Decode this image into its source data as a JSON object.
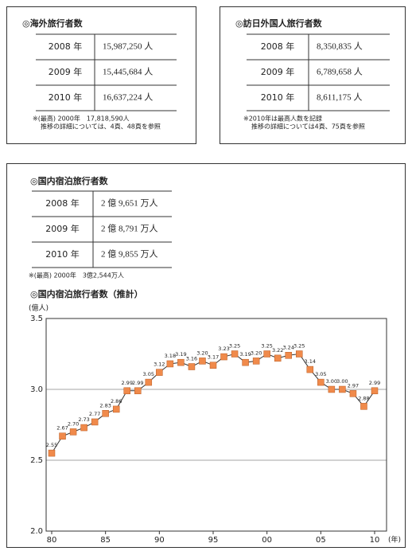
{
  "tables": [
    {
      "title": "◎海外旅行者数",
      "rows": [
        [
          "2008 年",
          "15,987,250 人"
        ],
        [
          "2009 年",
          "15,445,684 人"
        ],
        [
          "2010 年",
          "16,637,224 人"
        ]
      ],
      "notes": [
        "※(最高) 2000年　17,818,590人",
        "推移の詳細については、4頁、48頁を参照"
      ]
    },
    {
      "title": "◎訪日外国人旅行者数",
      "rows": [
        [
          "2008 年",
          "8,350,835 人"
        ],
        [
          "2009 年",
          "6,789,658 人"
        ],
        [
          "2010 年",
          "8,611,175 人"
        ]
      ],
      "notes": [
        "※2010年は最高人数を記録",
        "推移の詳細については4頁、75頁を参照"
      ]
    },
    {
      "title": "◎国内宿泊旅行者数",
      "rows": [
        [
          "2008 年",
          "2 億 9,651 万人"
        ],
        [
          "2009 年",
          "2 億 8,791 万人"
        ],
        [
          "2010 年",
          "2 億 9,855 万人"
        ]
      ],
      "notes": [
        "※(最高) 2000年　3億2,544万人"
      ]
    }
  ],
  "chart_data": {
    "type": "line",
    "title": "◎国内宿泊旅行者数（推計）",
    "y_label": "(億人)",
    "x_label": "(年)",
    "categories": [
      "80",
      null,
      null,
      null,
      null,
      "85",
      null,
      null,
      null,
      null,
      "90",
      null,
      null,
      null,
      null,
      "95",
      null,
      null,
      null,
      null,
      "00",
      null,
      null,
      null,
      null,
      "05",
      null,
      null,
      null,
      null,
      "10"
    ],
    "values": [
      2.55,
      2.67,
      2.7,
      2.73,
      2.77,
      2.83,
      2.86,
      2.99,
      2.99,
      3.05,
      3.12,
      3.18,
      3.19,
      3.16,
      3.2,
      3.17,
      3.23,
      3.25,
      3.19,
      3.2,
      3.25,
      3.22,
      3.24,
      3.25,
      3.14,
      3.05,
      3.0,
      3.0,
      2.97,
      2.88,
      2.99
    ],
    "value_labels": [
      "2.55",
      "2.67",
      "2.70",
      "2.73",
      "2.77",
      "2.83",
      "2.86",
      "2.99",
      "2.99",
      "3.05",
      "3.12",
      "3.18",
      "3.19",
      "3.16",
      "3.20",
      "3.17",
      "3.23",
      "3.25",
      "3.19",
      "3.20",
      "3.25",
      "3.22",
      "3.24",
      "3.25",
      "3.14",
      "3.05",
      "3.00",
      "3.00",
      "2.97",
      "2.88",
      "2.99"
    ],
    "ylim": [
      2.0,
      3.5
    ],
    "yticks": [
      {
        "value": 2,
        "label": "2.0"
      },
      2.5,
      {
        "value": 3,
        "label": "3.0"
      },
      3.5
    ],
    "grid": true,
    "color": "#f08a4b"
  }
}
